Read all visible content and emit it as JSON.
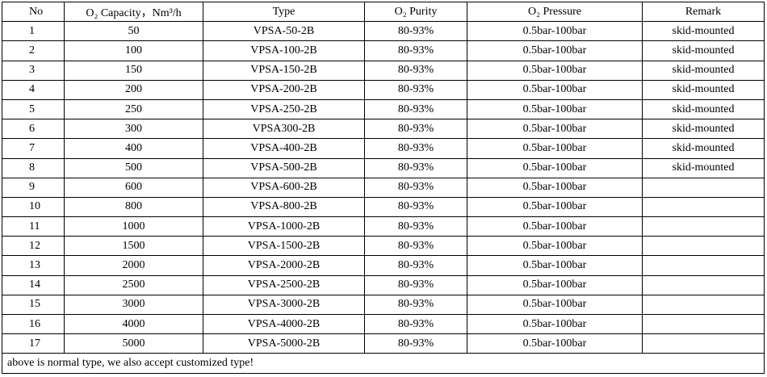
{
  "table": {
    "header": [
      "No",
      "O₂ Capacity，Nm³/h",
      "Type",
      "O₂ Purity",
      "O₂ Pressure",
      "Remark"
    ],
    "rows": [
      [
        "1",
        "50",
        "VPSA-50-2B",
        "80-93%",
        "0.5bar-100bar",
        "skid-mounted"
      ],
      [
        "2",
        "100",
        "VPSA-100-2B",
        "80-93%",
        "0.5bar-100bar",
        "skid-mounted"
      ],
      [
        "3",
        "150",
        "VPSA-150-2B",
        "80-93%",
        "0.5bar-100bar",
        "skid-mounted"
      ],
      [
        "4",
        "200",
        "VPSA-200-2B",
        "80-93%",
        "0.5bar-100bar",
        "skid-mounted"
      ],
      [
        "5",
        "250",
        "VPSA-250-2B",
        "80-93%",
        "0.5bar-100bar",
        "skid-mounted"
      ],
      [
        "6",
        "300",
        "VPSA300-2B",
        "80-93%",
        "0.5bar-100bar",
        "skid-mounted"
      ],
      [
        "7",
        "400",
        "VPSA-400-2B",
        "80-93%",
        "0.5bar-100bar",
        "skid-mounted"
      ],
      [
        "8",
        "500",
        "VPSA-500-2B",
        "80-93%",
        "0.5bar-100bar",
        "skid-mounted"
      ],
      [
        "9",
        "600",
        "VPSA-600-2B",
        "80-93%",
        "0.5bar-100bar"
      ],
      [
        "10",
        "800",
        "VPSA-800-2B",
        "80-93%",
        "0.5bar-100bar"
      ],
      [
        "11",
        "1000",
        "VPSA-1000-2B",
        "80-93%",
        "0.5bar-100bar"
      ],
      [
        "12",
        "1500",
        "VPSA-1500-2B",
        "80-93%",
        "0.5bar-100bar"
      ],
      [
        "13",
        "2000",
        "VPSA-2000-2B",
        "80-93%",
        "0.5bar-100bar"
      ],
      [
        "14",
        "2500",
        "VPSA-2500-2B",
        "80-93%",
        "0.5bar-100bar"
      ],
      [
        "15",
        "3000",
        "VPSA-3000-2B",
        "80-93%",
        "0.5bar-100bar"
      ],
      [
        "16",
        "4000",
        "VPSA-4000-2B",
        "80-93%",
        "0.5bar-100bar"
      ],
      [
        "17",
        "5000",
        "VPSA-5000-2B",
        "80-93%",
        "0.5bar-100bar"
      ]
    ],
    "footer": "above is normal type, we also accept customized type!"
  }
}
